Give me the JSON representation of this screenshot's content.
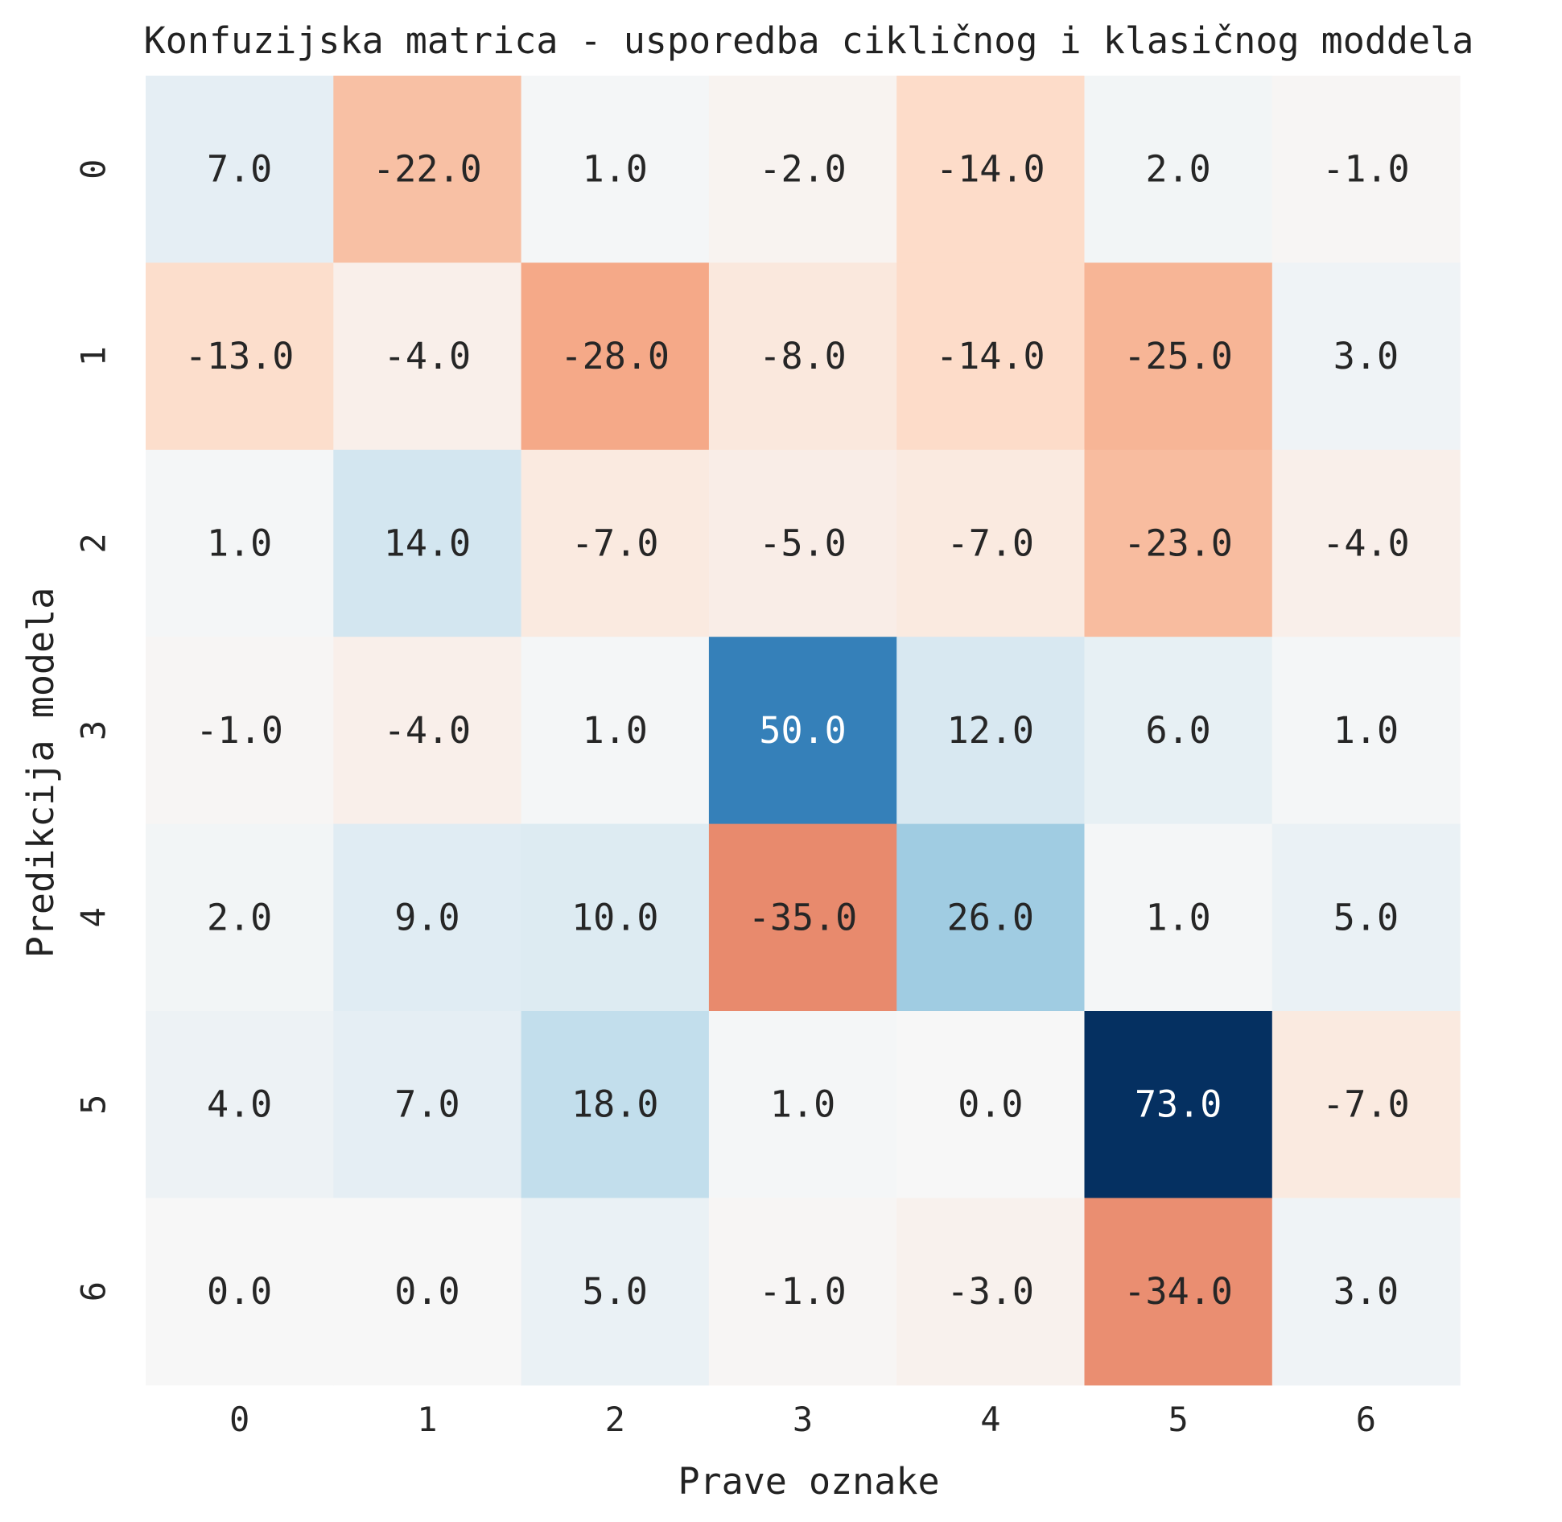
{
  "chart_data": {
    "type": "heatmap",
    "title": "Konfuzijska matrica - usporedba cikličnog i klasičnog moddela",
    "xlabel": "Prave oznake",
    "ylabel": "Predikcija modela",
    "x_categories": [
      "0",
      "1",
      "2",
      "3",
      "4",
      "5",
      "6"
    ],
    "y_categories": [
      "0",
      "1",
      "2",
      "3",
      "4",
      "5",
      "6"
    ],
    "values": [
      [
        7.0,
        -22.0,
        1.0,
        -2.0,
        -14.0,
        2.0,
        -1.0
      ],
      [
        -13.0,
        -4.0,
        -28.0,
        -8.0,
        -14.0,
        -25.0,
        3.0
      ],
      [
        1.0,
        14.0,
        -7.0,
        -5.0,
        -7.0,
        -23.0,
        -4.0
      ],
      [
        -1.0,
        -4.0,
        1.0,
        50.0,
        12.0,
        6.0,
        1.0
      ],
      [
        2.0,
        9.0,
        10.0,
        -35.0,
        26.0,
        1.0,
        5.0
      ],
      [
        4.0,
        7.0,
        18.0,
        1.0,
        0.0,
        73.0,
        -7.0
      ],
      [
        0.0,
        0.0,
        5.0,
        -1.0,
        -3.0,
        -34.0,
        3.0
      ]
    ],
    "value_format": "0.0",
    "colormap": "RdBu (diverging, centered at 0)",
    "color_range": [
      -73,
      73
    ],
    "colorbar": false,
    "grid": false
  }
}
